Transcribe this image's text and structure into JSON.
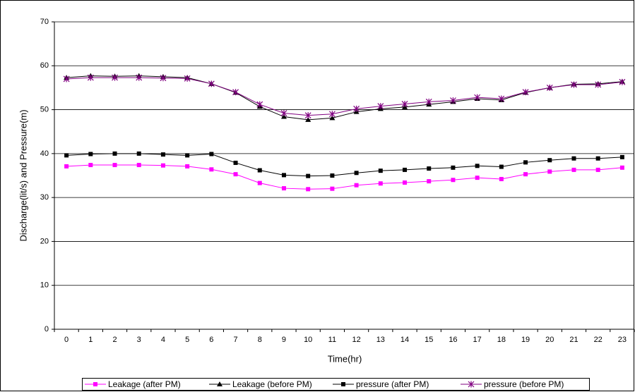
{
  "chart_data": {
    "type": "line",
    "x_label": "Time(hr)",
    "y_label": "Discharge(lit/s) and Pressure(m)",
    "categories": [
      "0",
      "1",
      "2",
      "3",
      "4",
      "5",
      "6",
      "7",
      "8",
      "9",
      "10",
      "11",
      "12",
      "13",
      "14",
      "15",
      "16",
      "17",
      "18",
      "19",
      "20",
      "21",
      "22",
      "23"
    ],
    "series": [
      {
        "name": "Leakage (after PM)",
        "color": "#ff00ff",
        "marker": "square",
        "values": [
          37.1,
          37.4,
          37.4,
          37.4,
          37.3,
          37.1,
          36.4,
          35.3,
          33.3,
          32.1,
          31.9,
          32.0,
          32.8,
          33.2,
          33.4,
          33.7,
          34.0,
          34.5,
          34.2,
          35.3,
          35.9,
          36.3,
          36.3,
          36.8
        ]
      },
      {
        "name": "Leakage (before PM)",
        "color": "#000000",
        "marker": "triangle",
        "values": [
          57.3,
          57.7,
          57.6,
          57.7,
          57.5,
          57.3,
          55.9,
          53.9,
          50.7,
          48.4,
          47.7,
          48.1,
          49.5,
          50.2,
          50.6,
          51.2,
          51.8,
          52.5,
          52.2,
          53.9,
          55.0,
          55.8,
          55.9,
          56.4
        ]
      },
      {
        "name": "pressure (after PM)",
        "color": "#000000",
        "marker": "square",
        "values": [
          39.6,
          39.9,
          40.0,
          40.0,
          39.8,
          39.6,
          39.9,
          37.9,
          36.2,
          35.1,
          34.9,
          35.0,
          35.6,
          36.1,
          36.3,
          36.6,
          36.8,
          37.2,
          37.0,
          38.0,
          38.5,
          38.9,
          38.9,
          39.2
        ]
      },
      {
        "name": "pressure (before PM)",
        "color": "#800080",
        "marker": "star",
        "values": [
          57.0,
          57.3,
          57.3,
          57.3,
          57.2,
          57.1,
          55.9,
          54.0,
          51.2,
          49.2,
          48.7,
          49.0,
          50.2,
          50.8,
          51.3,
          51.8,
          52.1,
          52.8,
          52.5,
          54.0,
          55.0,
          55.7,
          55.7,
          56.3
        ]
      }
    ],
    "ylim": [
      0,
      70
    ],
    "yticks": [
      0,
      10,
      20,
      30,
      40,
      50,
      60,
      70
    ],
    "grid": true,
    "legend": "bottom"
  }
}
